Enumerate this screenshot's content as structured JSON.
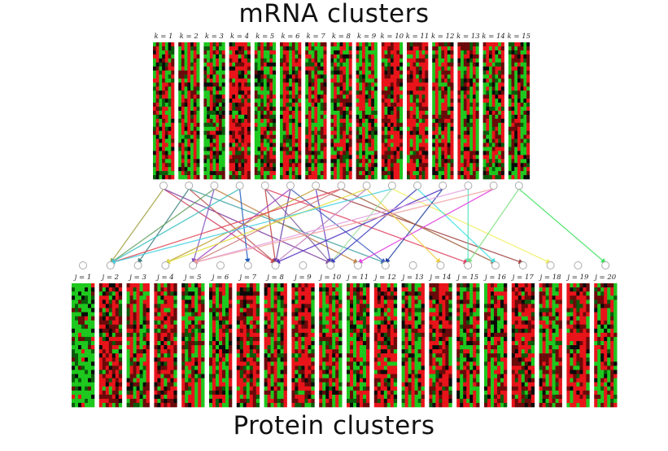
{
  "titles": {
    "top": "mRNA clusters",
    "bottom": "Protein clusters"
  },
  "mrna_clusters": [
    "k = 1",
    "k = 2",
    "k = 3",
    "k = 4",
    "k = 5",
    "k = 6",
    "k = 7",
    "k = 8",
    "k = 9",
    "k = 10",
    "k = 11",
    "k = 12",
    "k = 13",
    "k = 14",
    "k = 15"
  ],
  "protein_clusters": [
    "j = 1",
    "j = 2",
    "j = 3",
    "j = 4",
    "j = 5",
    "j = 6",
    "j = 7",
    "j = 8",
    "j = 9",
    "j = 10",
    "j = 11",
    "j = 12",
    "j = 13",
    "j = 14",
    "j = 15",
    "j = 16",
    "j = 17",
    "j = 18",
    "j = 19",
    "j = 20"
  ],
  "heatmap_colors": {
    "high": "#e8141a",
    "low": "#1ec81e",
    "neutral": "#0a0a0a"
  },
  "links": [
    {
      "k": 1,
      "j": 2,
      "color": "#a0a040"
    },
    {
      "k": 1,
      "j": 8,
      "color": "#d04060"
    },
    {
      "k": 1,
      "j": 10,
      "color": "#8040a0"
    },
    {
      "k": 2,
      "j": 3,
      "color": "#408080"
    },
    {
      "k": 2,
      "j": 8,
      "color": "#c05050"
    },
    {
      "k": 2,
      "j": 12,
      "color": "#40a0a0"
    },
    {
      "k": 3,
      "j": 2,
      "color": "#60a060"
    },
    {
      "k": 3,
      "j": 5,
      "color": "#8050c0"
    },
    {
      "k": 3,
      "j": 11,
      "color": "#c08040"
    },
    {
      "k": 4,
      "j": 2,
      "color": "#40c0c0"
    },
    {
      "k": 4,
      "j": 7,
      "color": "#2060c0"
    },
    {
      "k": 5,
      "j": 8,
      "color": "#c04040"
    },
    {
      "k": 5,
      "j": 10,
      "color": "#8060a0"
    },
    {
      "k": 5,
      "j": 15,
      "color": "#e04060"
    },
    {
      "k": 6,
      "j": 5,
      "color": "#a040c0"
    },
    {
      "k": 6,
      "j": 8,
      "color": "#6040a0"
    },
    {
      "k": 6,
      "j": 12,
      "color": "#4060c0"
    },
    {
      "k": 7,
      "j": 4,
      "color": "#c0a030"
    },
    {
      "k": 7,
      "j": 10,
      "color": "#6040c0"
    },
    {
      "k": 7,
      "j": 17,
      "color": "#a04040"
    },
    {
      "k": 8,
      "j": 2,
      "color": "#e04050"
    },
    {
      "k": 8,
      "j": 5,
      "color": "#d08080"
    },
    {
      "k": 8,
      "j": 16,
      "color": "#a06040"
    },
    {
      "k": 9,
      "j": 4,
      "color": "#e0e040"
    },
    {
      "k": 9,
      "j": 8,
      "color": "#c080c0"
    },
    {
      "k": 9,
      "j": 14,
      "color": "#f0d040"
    },
    {
      "k": 10,
      "j": 2,
      "color": "#40d0e0"
    },
    {
      "k": 10,
      "j": 10,
      "color": "#a0e0a0"
    },
    {
      "k": 10,
      "j": 18,
      "color": "#f0f060"
    },
    {
      "k": 11,
      "j": 10,
      "color": "#4040c0"
    },
    {
      "k": 11,
      "j": 16,
      "color": "#40e0e0"
    },
    {
      "k": 12,
      "j": 8,
      "color": "#5030c0"
    },
    {
      "k": 12,
      "j": 12,
      "color": "#2040a0"
    },
    {
      "k": 13,
      "j": 5,
      "color": "#e0a0e0"
    },
    {
      "k": 13,
      "j": 15,
      "color": "#50e0c0"
    },
    {
      "k": 14,
      "j": 11,
      "color": "#e040e0"
    },
    {
      "k": 14,
      "j": 5,
      "color": "#f0a0a0"
    },
    {
      "k": 15,
      "j": 15,
      "color": "#80e080"
    },
    {
      "k": 15,
      "j": 20,
      "color": "#40e060"
    }
  ]
}
